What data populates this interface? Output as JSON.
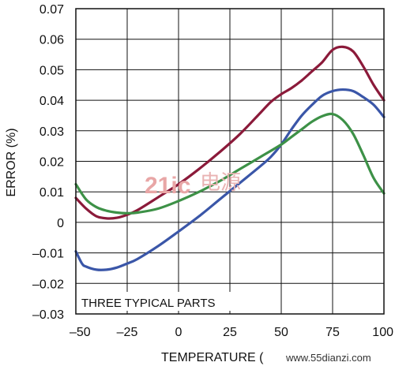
{
  "chart_data": {
    "type": "line",
    "xlabel": "TEMPERATURE (",
    "ylabel": "ERROR (%)",
    "xlim": [
      -50,
      100
    ],
    "ylim": [
      -0.03,
      0.07
    ],
    "xticks": [
      "–50",
      "–25",
      "0",
      "25",
      "50",
      "75",
      "100"
    ],
    "xtick_values": [
      -50,
      -25,
      0,
      25,
      50,
      75,
      100
    ],
    "yticks": [
      "–0.03",
      "–0.02",
      "–0.01",
      "0",
      "0.01",
      "0.02",
      "0.03",
      "0.04",
      "0.05",
      "0.06",
      "0.07"
    ],
    "ytick_values": [
      -0.03,
      -0.02,
      -0.01,
      0,
      0.01,
      0.02,
      0.03,
      0.04,
      0.05,
      0.06,
      0.07
    ],
    "grid": true,
    "annotation": "THREE TYPICAL PARTS",
    "series": [
      {
        "color": "#8b1a3a",
        "x": [
          -50,
          -45,
          -40,
          -35,
          -30,
          -25,
          -20,
          -10,
          0,
          10,
          20,
          30,
          40,
          45,
          50,
          55,
          60,
          65,
          70,
          75,
          80,
          85,
          90,
          95,
          100
        ],
        "y": [
          0.008,
          0.0045,
          0.002,
          0.0013,
          0.0015,
          0.0025,
          0.004,
          0.0082,
          0.0125,
          0.0175,
          0.023,
          0.029,
          0.036,
          0.0395,
          0.042,
          0.044,
          0.0465,
          0.0495,
          0.0525,
          0.0565,
          0.0575,
          0.056,
          0.051,
          0.045,
          0.04
        ]
      },
      {
        "color": "#3a56a8",
        "x": [
          -50,
          -47,
          -45,
          -40,
          -35,
          -30,
          -25,
          -20,
          -10,
          0,
          10,
          20,
          30,
          40,
          45,
          50,
          55,
          60,
          65,
          70,
          75,
          80,
          85,
          90,
          95,
          100
        ],
        "y": [
          -0.0095,
          -0.0135,
          -0.0145,
          -0.0155,
          -0.0155,
          -0.0148,
          -0.0135,
          -0.012,
          -0.0078,
          -0.003,
          0.002,
          0.0075,
          0.013,
          0.0185,
          0.0215,
          0.0255,
          0.0305,
          0.035,
          0.0385,
          0.0415,
          0.043,
          0.0435,
          0.043,
          0.041,
          0.0385,
          0.0345
        ]
      },
      {
        "color": "#3d9147",
        "x": [
          -50,
          -45,
          -40,
          -35,
          -30,
          -25,
          -20,
          -10,
          0,
          10,
          20,
          30,
          40,
          50,
          55,
          60,
          65,
          70,
          75,
          80,
          85,
          90,
          95,
          100
        ],
        "y": [
          0.0125,
          0.0075,
          0.005,
          0.0038,
          0.0032,
          0.003,
          0.0032,
          0.0045,
          0.007,
          0.01,
          0.0135,
          0.0175,
          0.0215,
          0.0255,
          0.028,
          0.0305,
          0.033,
          0.0348,
          0.0355,
          0.0335,
          0.029,
          0.022,
          0.0145,
          0.0095
        ]
      }
    ]
  },
  "watermark": {
    "logo_number": "21ic",
    "logo_cn": "电源",
    "site": "www.55dianzi.com"
  }
}
